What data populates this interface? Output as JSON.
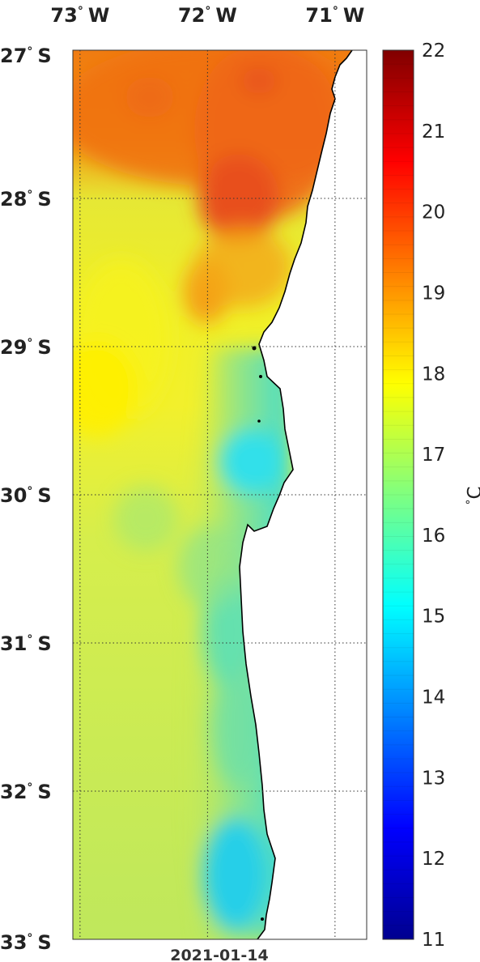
{
  "map": {
    "date": "2021-01-14",
    "lon_labels": [
      {
        "deg": "73",
        "hemi": "W",
        "lon": -73
      },
      {
        "deg": "72",
        "hemi": "W",
        "lon": -72
      },
      {
        "deg": "71",
        "hemi": "W",
        "lon": -71
      }
    ],
    "lat_labels": [
      {
        "deg": "27",
        "hemi": "S",
        "lat": -27
      },
      {
        "deg": "28",
        "hemi": "S",
        "lat": -28
      },
      {
        "deg": "29",
        "hemi": "S",
        "lat": -29
      },
      {
        "deg": "30",
        "hemi": "S",
        "lat": -30
      },
      {
        "deg": "31",
        "hemi": "S",
        "lat": -31
      },
      {
        "deg": "32",
        "hemi": "S",
        "lat": -32
      },
      {
        "deg": "33",
        "hemi": "S",
        "lat": -33
      }
    ],
    "grid": true,
    "colormap": "jet"
  },
  "colorbar": {
    "unit": "C",
    "min": 11,
    "max": 22,
    "ticks": [
      "22",
      "21",
      "20",
      "19",
      "18",
      "17",
      "16",
      "15",
      "14",
      "13",
      "12",
      "11"
    ]
  }
}
